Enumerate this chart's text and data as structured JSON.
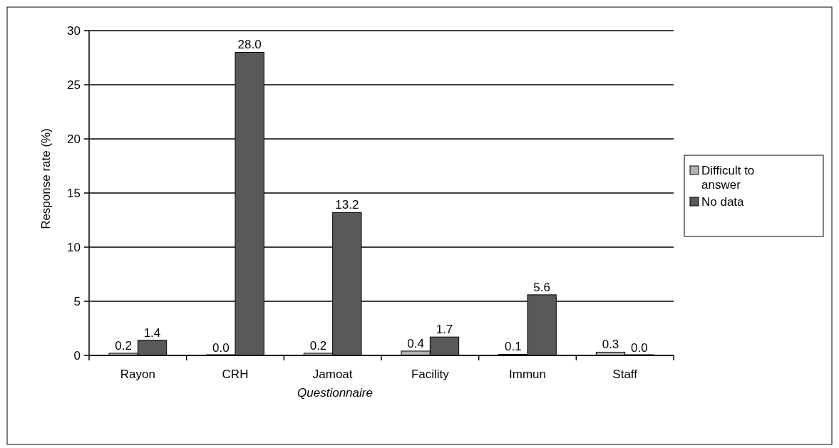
{
  "chart_data": {
    "type": "bar",
    "ylabel": "Response rate (%)",
    "xlabel": "Questionnaire",
    "categories": [
      "Rayon",
      "CRH",
      "Jamoat",
      "Facility",
      "Immun",
      "Staff"
    ],
    "series": [
      {
        "name": "Difficult to answer",
        "color": "#b3b3b3",
        "values": [
          0.2,
          0,
          0.2,
          0.4,
          0.1,
          0.3
        ],
        "value_labels": [
          "0.2",
          "0.0",
          "0.2",
          "0.4",
          "0.1",
          "0.3"
        ]
      },
      {
        "name": "No data",
        "color": "#595959",
        "values": [
          1.4,
          28,
          13.2,
          1.7,
          5.6,
          0
        ],
        "value_labels": [
          "1.4",
          "28.0",
          "13.2",
          "1.7",
          "5.6",
          "0.0"
        ]
      }
    ],
    "ylim": [
      0,
      30
    ],
    "yticks": [
      0,
      5,
      10,
      15,
      20,
      25,
      30
    ],
    "grid": "y",
    "legend": "right"
  }
}
